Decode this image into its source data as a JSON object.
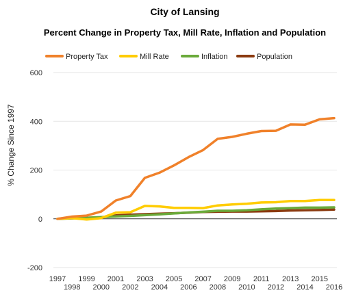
{
  "chart_data": {
    "type": "line",
    "title": "City of Lansing",
    "subtitle": "Percent Change in Property Tax, Mill Rate, Inflation and Population",
    "xlabel": "",
    "ylabel": "% Change Since 1997",
    "ylim": [
      -200,
      600
    ],
    "yticks": [
      -200,
      0,
      200,
      400,
      600
    ],
    "grid": true,
    "legend_position": "top",
    "x": [
      "1997",
      "1998",
      "1999",
      "2000",
      "2001",
      "2002",
      "2003",
      "2004",
      "2005",
      "2006",
      "2007",
      "2008",
      "2009",
      "2010",
      "2011",
      "2012",
      "2013",
      "2014",
      "2015",
      "2016"
    ],
    "series": [
      {
        "name": "Property Tax",
        "color": "#F0812A",
        "values": [
          0,
          9,
          13,
          30,
          75,
          93,
          168,
          189,
          219,
          253,
          282,
          328,
          336,
          349,
          360,
          361,
          387,
          386,
          408,
          413
        ]
      },
      {
        "name": "Mill Rate",
        "color": "#FFCC00",
        "values": [
          0,
          3,
          -3,
          3,
          25,
          27,
          53,
          51,
          45,
          45,
          44,
          55,
          59,
          62,
          67,
          68,
          73,
          73,
          77,
          77
        ]
      },
      {
        "name": "Inflation",
        "color": "#6AAA3A",
        "values": [
          0,
          2,
          4,
          7,
          10,
          12,
          15,
          18,
          22,
          26,
          29,
          33,
          33,
          35,
          39,
          42,
          44,
          46,
          46,
          47
        ]
      },
      {
        "name": "Population",
        "color": "#8B3A0F",
        "values": [
          0,
          2,
          4,
          6,
          14,
          17,
          19,
          21,
          23,
          25,
          28,
          29,
          30,
          30,
          31,
          32,
          34,
          35,
          36,
          38
        ]
      }
    ]
  }
}
